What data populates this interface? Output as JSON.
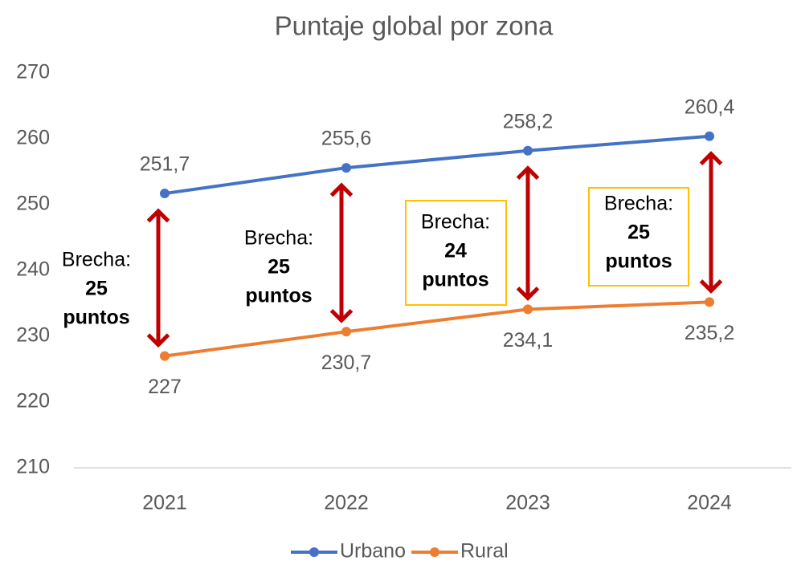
{
  "chart_data": {
    "type": "line",
    "title": "Puntaje global por zona",
    "categories": [
      "2021",
      "2022",
      "2023",
      "2024"
    ],
    "series": [
      {
        "name": "Urbano",
        "color": "#4472c4",
        "values": [
          251.7,
          255.6,
          258.2,
          260.4
        ],
        "value_labels": [
          "251,7",
          "255,6",
          "258,2",
          "260,4"
        ]
      },
      {
        "name": "Rural",
        "color": "#ed7d31",
        "values": [
          227,
          230.7,
          234.1,
          235.2
        ],
        "value_labels": [
          "227",
          "230,7",
          "234,1",
          "235,2"
        ]
      }
    ],
    "ylim": [
      210,
      270
    ],
    "yticks": [
      210,
      220,
      230,
      240,
      250,
      260,
      270
    ],
    "annotations": [
      {
        "lines": [
          "Brecha:",
          "25",
          "puntos"
        ],
        "boxed": false
      },
      {
        "lines": [
          "Brecha:",
          "25",
          "puntos"
        ],
        "boxed": false
      },
      {
        "lines": [
          "Brecha:",
          "24",
          "puntos"
        ],
        "boxed": true
      },
      {
        "lines": [
          "Brecha:",
          "25",
          "puntos"
        ],
        "boxed": true
      }
    ],
    "annotation_color": "#c00000",
    "box_color": "#ffc000",
    "legend": "bottom"
  }
}
